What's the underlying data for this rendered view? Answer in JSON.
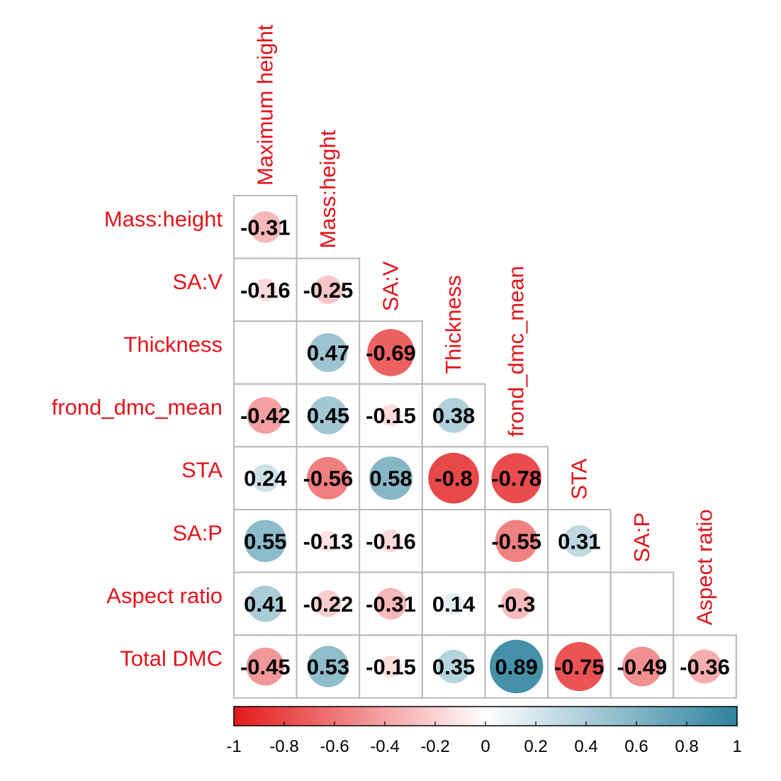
{
  "chart_data": {
    "type": "heatmap",
    "style": "lower-triangle correlation circles",
    "row_labels": [
      "Mass:height",
      "SA:V",
      "Thickness",
      "frond_dmc_mean",
      "STA",
      "SA:P",
      "Aspect ratio",
      "Total DMC"
    ],
    "column_labels": [
      "Maximum height",
      "Mass:height",
      "SA:V",
      "Thickness",
      "frond_dmc_mean",
      "STA",
      "SA:P",
      "Aspect ratio"
    ],
    "values": [
      [
        -0.31
      ],
      [
        -0.16,
        -0.25
      ],
      [
        null,
        0.47,
        -0.69
      ],
      [
        -0.42,
        0.45,
        -0.15,
        0.38
      ],
      [
        0.24,
        -0.56,
        0.58,
        -0.8,
        -0.78
      ],
      [
        0.55,
        -0.13,
        -0.16,
        null,
        -0.55,
        0.31
      ],
      [
        0.41,
        -0.22,
        -0.31,
        0.14,
        -0.3,
        null,
        null
      ],
      [
        -0.45,
        0.53,
        -0.15,
        0.35,
        0.89,
        -0.75,
        -0.49,
        -0.36
      ]
    ],
    "value_labels": [
      [
        "-0.31"
      ],
      [
        "-0.16",
        "-0.25"
      ],
      [
        "",
        "0.47",
        "-0.69"
      ],
      [
        "-0.42",
        "0.45",
        "-0.15",
        "0.38"
      ],
      [
        "0.24",
        "-0.56",
        "0.58",
        "-0.8",
        "-0.78"
      ],
      [
        "0.55",
        "-0.13",
        "-0.16",
        "",
        "-0.55",
        "0.31"
      ],
      [
        "0.41",
        "-0.22",
        "-0.31",
        "0.14",
        "-0.3",
        "",
        ""
      ],
      [
        "-0.45",
        "0.53",
        "-0.15",
        "0.35",
        "0.89",
        "-0.75",
        "-0.49",
        "-0.36"
      ]
    ],
    "colorbar": {
      "range": [
        -1,
        1
      ],
      "ticks": [
        -1,
        -0.8,
        -0.6,
        -0.4,
        -0.2,
        0,
        0.2,
        0.4,
        0.6,
        0.8,
        1
      ],
      "tick_labels": [
        "-1",
        "-0.8",
        "-0.6",
        "-0.4",
        "-0.2",
        "0",
        "0.2",
        "0.4",
        "0.6",
        "0.8",
        "1"
      ],
      "colors": [
        "#e41a1c",
        "#ffffff",
        "#2e839e"
      ]
    },
    "label_color": "#e3141b",
    "grid_color": "#b8b8b8"
  }
}
